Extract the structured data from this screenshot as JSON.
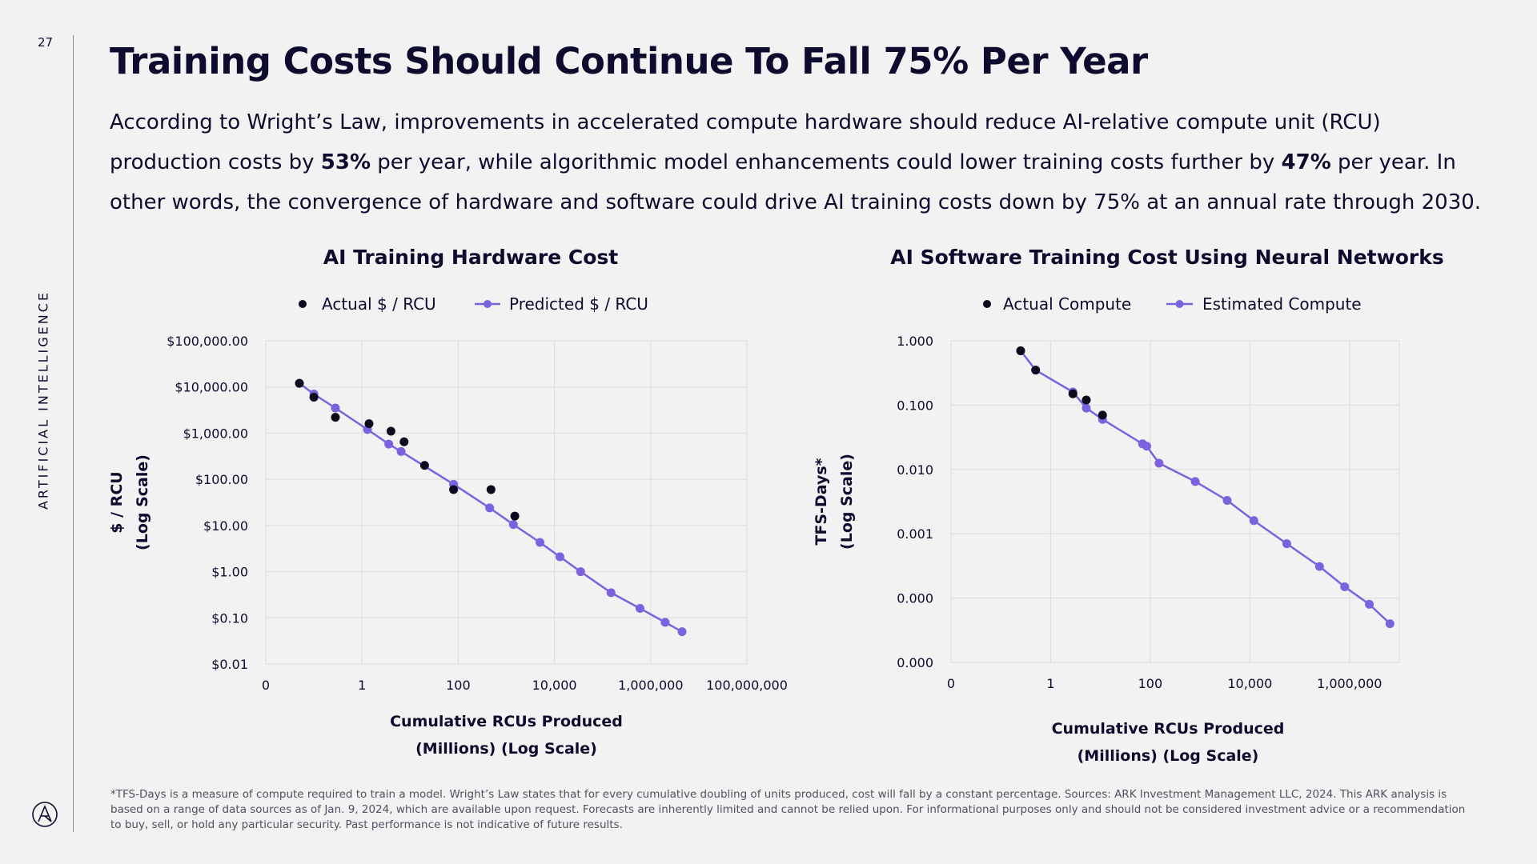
{
  "page": {
    "number": "27",
    "section_label": "ARTIFICIAL INTELLIGENCE",
    "title": "Training Costs Should Continue To Fall 75% Per Year",
    "subtitle": {
      "part1": "According to Wright’s Law, improvements in accelerated compute hardware should reduce AI-relative compute unit (RCU) production costs by ",
      "bold1": "53%",
      "part2": " per year, while algorithmic model enhancements could lower training costs further by ",
      "bold2": "47%",
      "part3": " per year. In other words, the convergence of hardware and software could drive AI training costs down by 75% at an annual rate through 2030."
    },
    "footnote": "*TFS-Days is a measure of compute required to train a model. Wright’s Law states that for every cumulative doubling of units produced, cost will fall by a constant percentage. Sources: ARK Investment Management LLC, 2024. This ARK analysis is based on a range of data sources as of Jan. 9, 2024, which are available upon request. Forecasts are inherently limited and cannot be relied upon. For informational purposes only and should not be considered investment advice or a recommendation to buy, sell, or hold any particular security. Past performance is not indicative of future results."
  },
  "colors": {
    "actual": "#0d0b1e",
    "predicted": "#7b63e0",
    "grid": "#dcdcdc",
    "text": "#0d0b2e"
  },
  "chart_data": [
    {
      "type": "scatter",
      "title": "AI Training Hardware Cost",
      "xlabel": [
        "Cumulative RCUs Produced",
        "(Millions) (Log Scale)"
      ],
      "ylabel": [
        "$ / RCU",
        "(Log Scale)"
      ],
      "x_scale": "log",
      "y_scale": "log",
      "xlim": [
        0.01,
        100000000
      ],
      "ylim": [
        0.01,
        100000
      ],
      "x_ticks": [
        {
          "value": 0.01,
          "label": "0"
        },
        {
          "value": 1,
          "label": "1"
        },
        {
          "value": 100,
          "label": "100"
        },
        {
          "value": 10000,
          "label": "10,000"
        },
        {
          "value": 1000000,
          "label": "1,000,000"
        },
        {
          "value": 100000000,
          "label": "100,000,000"
        }
      ],
      "y_ticks": [
        {
          "value": 100000,
          "label": "$100,000.00"
        },
        {
          "value": 10000,
          "label": "$10,000.00"
        },
        {
          "value": 1000,
          "label": "$1,000.00"
        },
        {
          "value": 100,
          "label": "$100.00"
        },
        {
          "value": 10,
          "label": "$10.00"
        },
        {
          "value": 1,
          "label": "$1.00"
        },
        {
          "value": 0.1,
          "label": "$0.10"
        },
        {
          "value": 0.01,
          "label": "$0.01"
        }
      ],
      "grid": true,
      "legend": "top",
      "series": [
        {
          "name": "Actual $ / RCU",
          "kind": "points",
          "x": [
            0.05,
            0.1,
            0.28,
            1.4,
            4,
            7.5,
            20,
            80,
            480,
            1500
          ],
          "y": [
            12000,
            6000,
            2200,
            1600,
            1100,
            650,
            200,
            60,
            60,
            16
          ]
        },
        {
          "name": "Predicted $ / RCU",
          "kind": "line-markers",
          "x": [
            0.05,
            0.1,
            0.28,
            1.3,
            3.6,
            6.5,
            80,
            450,
            1400,
            5000,
            13000,
            35000,
            150000,
            600000,
            2000000,
            4500000
          ],
          "y": [
            12000,
            7000,
            3500,
            1200,
            580,
            400,
            78,
            24,
            10.5,
            4.3,
            2.1,
            1.0,
            0.35,
            0.16,
            0.08,
            0.05
          ]
        }
      ]
    },
    {
      "type": "scatter",
      "title": "AI Software Training Cost Using Neural Networks",
      "xlabel": [
        "Cumulative RCUs Produced",
        "(Millions) (Log Scale)"
      ],
      "ylabel": [
        "TFS-Days*",
        "(Log Scale)"
      ],
      "x_scale": "log",
      "y_scale": "log",
      "xlim": [
        0.01,
        10000000
      ],
      "ylim": [
        1e-05,
        1
      ],
      "x_ticks": [
        {
          "value": 0.01,
          "label": "0"
        },
        {
          "value": 1,
          "label": "1"
        },
        {
          "value": 100,
          "label": "100"
        },
        {
          "value": 10000,
          "label": "10,000"
        },
        {
          "value": 1000000,
          "label": "1,000,000"
        }
      ],
      "y_ticks": [
        {
          "value": 1,
          "label": "1.000"
        },
        {
          "value": 0.1,
          "label": "0.100"
        },
        {
          "value": 0.01,
          "label": "0.010"
        },
        {
          "value": 0.001,
          "label": "0.001"
        },
        {
          "value": 0.0001,
          "label": "0.000"
        },
        {
          "value": 1e-05,
          "label": "0.000"
        }
      ],
      "grid": true,
      "legend": "top",
      "series": [
        {
          "name": "Actual Compute",
          "kind": "points",
          "x": [
            0.25,
            0.5,
            2.8,
            5.2,
            11
          ],
          "y": [
            0.7,
            0.35,
            0.15,
            0.12,
            0.07
          ]
        },
        {
          "name": "Estimated Compute",
          "kind": "line-markers",
          "x": [
            0.25,
            0.5,
            2.8,
            5.2,
            11,
            70,
            85,
            150,
            800,
            3500,
            12000,
            55000,
            250000,
            800000,
            2500000,
            6500000
          ],
          "y": [
            0.7,
            0.35,
            0.16,
            0.09,
            0.06,
            0.025,
            0.023,
            0.0125,
            0.0065,
            0.0033,
            0.0016,
            0.0007,
            0.00031,
            0.00015,
            8e-05,
            4e-05
          ]
        }
      ]
    }
  ]
}
